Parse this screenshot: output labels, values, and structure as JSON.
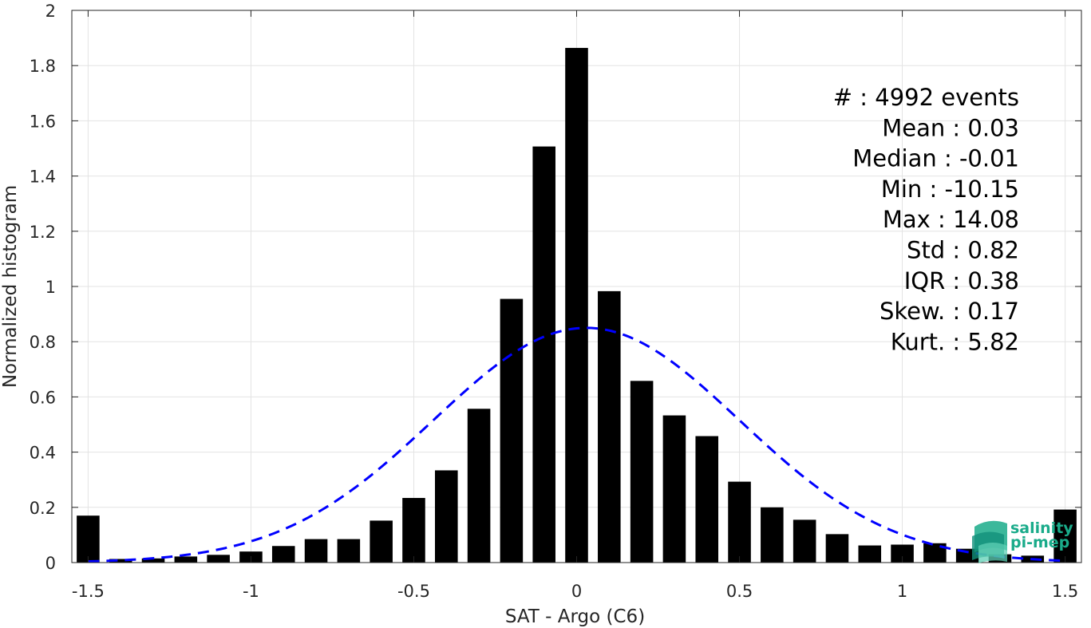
{
  "chart_data": {
    "type": "bar",
    "xlabel": "SAT - Argo (C6)",
    "ylabel": "Normalized histogram",
    "xlim": [
      -1.55,
      1.55
    ],
    "ylim": [
      0,
      2
    ],
    "grid": true,
    "x_ticks": [
      -1.5,
      -1,
      -0.5,
      0,
      0.5,
      1,
      1.5
    ],
    "x_tick_labels": [
      "-1.5",
      "-1",
      "-0.5",
      "0",
      "0.5",
      "1",
      "1.5"
    ],
    "y_ticks": [
      0,
      0.2,
      0.4,
      0.6,
      0.8,
      1,
      1.2,
      1.4,
      1.6,
      1.8,
      2
    ],
    "y_tick_labels": [
      "0",
      "0.2",
      "0.4",
      "0.6",
      "0.8",
      "1",
      "1.2",
      "1.4",
      "1.6",
      "1.8",
      "2"
    ],
    "bar_width": 0.07,
    "bar_color": "#000000",
    "x": [
      -1.5,
      -1.4,
      -1.3,
      -1.2,
      -1.1,
      -1.0,
      -0.9,
      -0.8,
      -0.7,
      -0.6,
      -0.5,
      -0.4,
      -0.3,
      -0.2,
      -0.1,
      0.0,
      0.1,
      0.2,
      0.3,
      0.4,
      0.5,
      0.6,
      0.7,
      0.8,
      0.9,
      1.0,
      1.1,
      1.2,
      1.3,
      1.4,
      1.5
    ],
    "values": [
      0.17,
      0.013,
      0.015,
      0.022,
      0.028,
      0.04,
      0.06,
      0.085,
      0.085,
      0.152,
      0.234,
      0.334,
      0.557,
      0.955,
      1.507,
      1.864,
      0.983,
      0.658,
      0.533,
      0.458,
      0.293,
      0.2,
      0.155,
      0.103,
      0.062,
      0.065,
      0.07,
      0.05,
      0.03,
      0.025,
      0.192
    ],
    "fit_curve": {
      "type": "normal",
      "mean": 0.03,
      "std": 0.47,
      "peak": 0.85,
      "x_range": [
        -1.5,
        1.5
      ],
      "color": "#0000ff",
      "style": "dashed"
    },
    "annotations": [
      "#  : 4992 events",
      "Mean : 0.03",
      "Median : -0.01",
      "Min : -10.15",
      "Max : 14.08",
      "Std : 0.82",
      "IQR : 0.38",
      "Skew. : 0.17",
      "Kurt. : 5.82"
    ]
  },
  "logo": {
    "line1": "salinity",
    "line2": "pi-mep",
    "color": "#1aab8a"
  }
}
